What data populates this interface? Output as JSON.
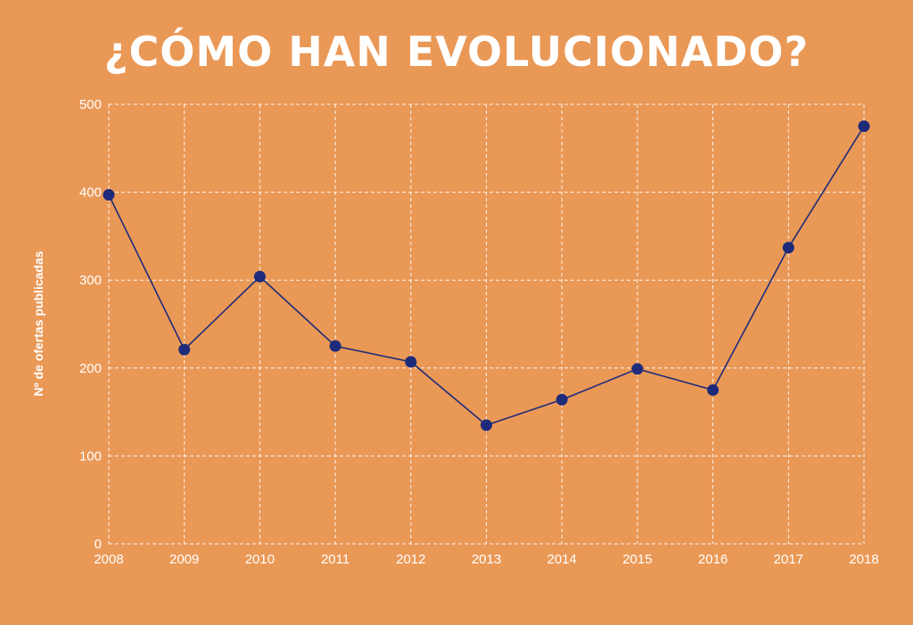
{
  "title": "¿CÓMO HAN EVOLUCIONADO?",
  "colors": {
    "background": "#EA9856",
    "line": "#1E2B7A",
    "grid": "#FFFFFF",
    "text": "#FFFFFF"
  },
  "chart_data": {
    "type": "line",
    "title": "¿CÓMO HAN EVOLUCIONADO?",
    "xlabel": "",
    "ylabel": "Nº de ofertas publicadas",
    "ylim": [
      0,
      500
    ],
    "yticks": [
      0,
      100,
      200,
      300,
      400,
      500
    ],
    "grid": true,
    "categories": [
      "2008",
      "2009",
      "2010",
      "2011",
      "2012",
      "2013",
      "2014",
      "2015",
      "2016",
      "2017",
      "2018"
    ],
    "series": [
      {
        "values": [
          397,
          221,
          304,
          225,
          207,
          135,
          164,
          199,
          175,
          337,
          475
        ]
      }
    ]
  }
}
